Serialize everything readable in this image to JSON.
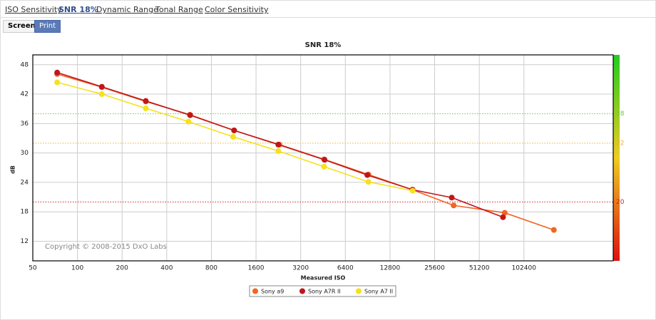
{
  "tabs": [
    "ISO Sensitivity",
    "SNR 18%",
    "Dynamic Range",
    "Tonal Range",
    "Color Sensitivity"
  ],
  "buttons": [
    "Screen",
    "Print"
  ],
  "chart_data": {
    "type": "line",
    "title": "SNR 18%",
    "x_label": "Measured ISO",
    "y_label": "dB",
    "annotation": "Copyright © 2008-2015 DxO Labs",
    "x_scale": "log2",
    "xlim": [
      50,
      409600
    ],
    "xticks": [
      50,
      100,
      200,
      400,
      800,
      1600,
      3200,
      6400,
      12800,
      25600,
      51200,
      102400
    ],
    "ylim": [
      8,
      50
    ],
    "yticks": [
      12,
      18,
      24,
      30,
      36,
      42,
      48
    ],
    "grid": true,
    "legend": "bottom",
    "reference_lines": [
      {
        "value": 38,
        "color": "#66cc33"
      },
      {
        "value": 32,
        "color": "#f0b030"
      },
      {
        "value": 20,
        "color": "#cc2222"
      }
    ],
    "series": [
      {
        "name": "Sony a9",
        "color": "#f26522",
        "x": [
          73,
          146,
          289,
          573,
          1136,
          2300,
          4600,
          9160,
          18100,
          34400,
          76000,
          163000
        ],
        "values": [
          46.1,
          43.4,
          40.5,
          37.8,
          34.6,
          31.7,
          28.7,
          25.6,
          22.5,
          19.3,
          17.8,
          14.3
        ]
      },
      {
        "name": "Sony A7R II",
        "color": "#c0161b",
        "x": [
          73,
          146,
          289,
          575,
          1140,
          2260,
          4640,
          9000,
          18200,
          33400,
          74000
        ],
        "values": [
          46.4,
          43.5,
          40.6,
          37.7,
          34.6,
          31.7,
          28.6,
          25.5,
          22.5,
          20.9,
          16.9
        ]
      },
      {
        "name": "Sony A7 II",
        "color": "#f5e11d",
        "x": [
          73,
          146,
          289,
          560,
          1120,
          2260,
          4600,
          9160,
          18200
        ],
        "values": [
          44.4,
          42.0,
          39.1,
          36.4,
          33.3,
          30.4,
          27.2,
          24.1,
          22.3
        ]
      }
    ]
  }
}
